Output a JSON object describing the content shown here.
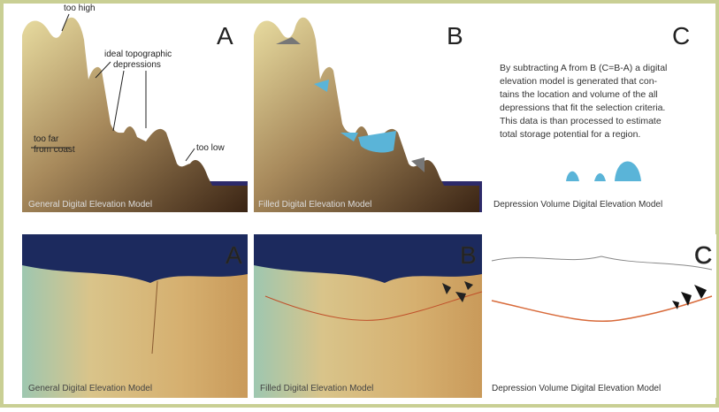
{
  "top_row": {
    "a": {
      "letter": "A",
      "caption": "General Digital Elevation Model",
      "labels": [
        "too high",
        "ideal topographic",
        "depressions",
        "too far",
        "from coast",
        "too low"
      ]
    },
    "b": {
      "letter": "B",
      "caption": "Filled Digital Elevation Model"
    },
    "c": {
      "letter": "C",
      "text_lines": [
        "By subtracting A from B (C=B-A) a digital",
        "elevation model is generated that con-",
        "tains the location and volume of the all",
        "depressions that fit the selection criteria.",
        "This data is than processed to estimate",
        "total storage potential for a region."
      ],
      "caption": "Depression Volume Digital Elevation Model"
    }
  },
  "bottom_row": {
    "a": {
      "letter": "A",
      "caption": "General Digital Elevation Model"
    },
    "b": {
      "letter": "B",
      "caption": "Filled Digital Elevation Model"
    },
    "c": {
      "letter": "C",
      "caption": "Depression Volume Digital Elevation Model"
    }
  }
}
